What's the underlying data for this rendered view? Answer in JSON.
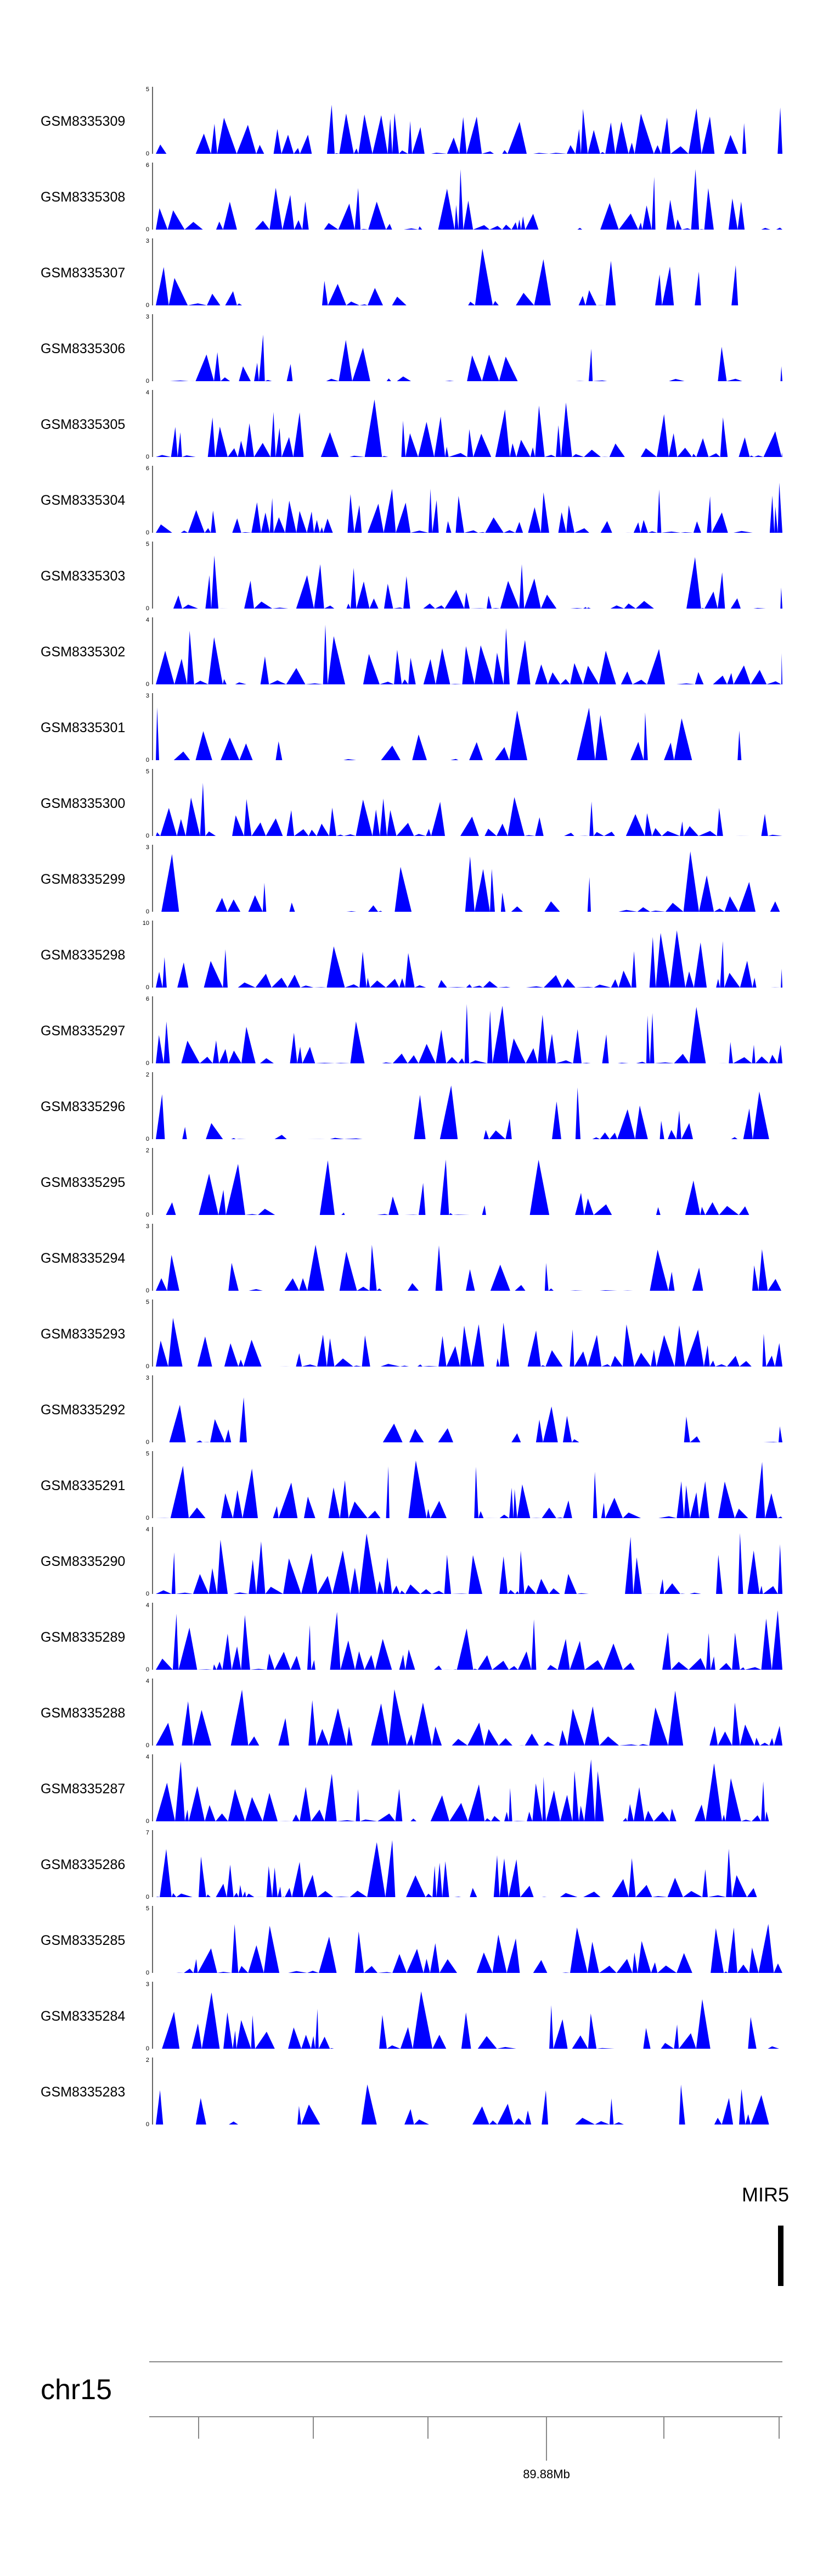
{
  "chart_data": {
    "type": "area",
    "fill_color": "#0000ff",
    "series": [
      {
        "name": "GSM8335309",
        "ylim": [
          0,
          5
        ]
      },
      {
        "name": "GSM8335308",
        "ylim": [
          0,
          6
        ]
      },
      {
        "name": "GSM8335307",
        "ylim": [
          0,
          3
        ]
      },
      {
        "name": "GSM8335306",
        "ylim": [
          0,
          3
        ]
      },
      {
        "name": "GSM8335305",
        "ylim": [
          0,
          4
        ]
      },
      {
        "name": "GSM8335304",
        "ylim": [
          0,
          6
        ]
      },
      {
        "name": "GSM8335303",
        "ylim": [
          0,
          5
        ]
      },
      {
        "name": "GSM8335302",
        "ylim": [
          0,
          4
        ]
      },
      {
        "name": "GSM8335301",
        "ylim": [
          0,
          3
        ]
      },
      {
        "name": "GSM8335300",
        "ylim": [
          0,
          5
        ]
      },
      {
        "name": "GSM8335299",
        "ylim": [
          0,
          3
        ]
      },
      {
        "name": "GSM8335298",
        "ylim": [
          0,
          10
        ]
      },
      {
        "name": "GSM8335297",
        "ylim": [
          0,
          6
        ]
      },
      {
        "name": "GSM8335296",
        "ylim": [
          0,
          2
        ]
      },
      {
        "name": "GSM8335295",
        "ylim": [
          0,
          2
        ]
      },
      {
        "name": "GSM8335294",
        "ylim": [
          0,
          3
        ]
      },
      {
        "name": "GSM8335293",
        "ylim": [
          0,
          5
        ]
      },
      {
        "name": "GSM8335292",
        "ylim": [
          0,
          3
        ]
      },
      {
        "name": "GSM8335291",
        "ylim": [
          0,
          5
        ]
      },
      {
        "name": "GSM8335290",
        "ylim": [
          0,
          4
        ]
      },
      {
        "name": "GSM8335289",
        "ylim": [
          0,
          4
        ]
      },
      {
        "name": "GSM8335288",
        "ylim": [
          0,
          4
        ]
      },
      {
        "name": "GSM8335287",
        "ylim": [
          0,
          4
        ]
      },
      {
        "name": "GSM8335286",
        "ylim": [
          0,
          7
        ]
      },
      {
        "name": "GSM8335285",
        "ylim": [
          0,
          5
        ]
      },
      {
        "name": "GSM8335284",
        "ylim": [
          0,
          3
        ]
      },
      {
        "name": "GSM8335283",
        "ylim": [
          0,
          2
        ]
      }
    ],
    "gene_annotation": {
      "label": "MIR5",
      "strand_color": "#000000"
    },
    "chromosome": "chr15",
    "genome_axis": {
      "labeled_tick": "89.88Mb",
      "tick_count": 6
    }
  }
}
